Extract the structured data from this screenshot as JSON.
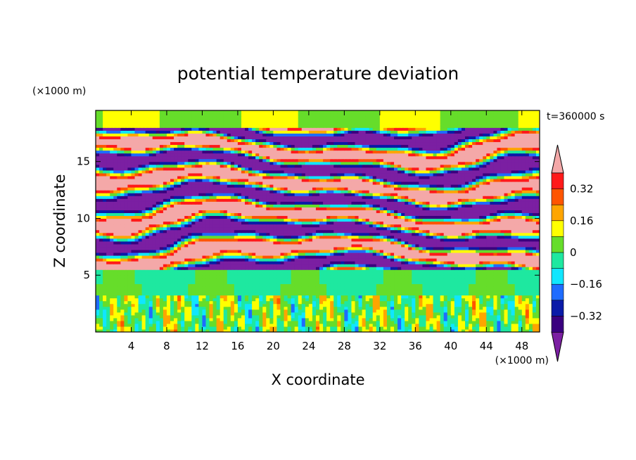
{
  "chart_data": {
    "type": "heatmap",
    "title": "potential temperature deviation",
    "xlabel": "X coordinate",
    "ylabel": "Z coordinate",
    "x_unit": "(×1000 m)",
    "y_unit": "(×1000 m)",
    "time_label": "t=360000 s",
    "xlim": [
      0,
      50
    ],
    "ylim": [
      0,
      19.5
    ],
    "x_ticks": [
      4,
      8,
      12,
      16,
      20,
      24,
      28,
      32,
      36,
      40,
      44,
      48
    ],
    "y_ticks": [
      5,
      10,
      15
    ],
    "colorbar": {
      "levels": [
        -0.4,
        -0.32,
        -0.24,
        -0.16,
        -0.08,
        0,
        0.08,
        0.16,
        0.24,
        0.32,
        0.4
      ],
      "labeled_levels": [
        0.32,
        0.16,
        0,
        -0.16,
        -0.32
      ],
      "tick_labels": [
        "0.32",
        "0.16",
        "0",
        "−0.16",
        "−0.32"
      ],
      "colors": [
        "#7b1fa2",
        "#3a007f",
        "#0a1aa8",
        "#1e6cff",
        "#10e6ff",
        "#1ee8a0",
        "#66dd2a",
        "#ffff00",
        "#ffa500",
        "#ff5500",
        "#ff1a1a",
        "#f4a8a8"
      ]
    },
    "layers": [
      {
        "z_range": [
          0,
          3.2
        ],
        "description_level": "mixed small-scale vertical plumes, mostly near 0"
      },
      {
        "z_range": [
          3.2,
          5.5
        ],
        "level": 0.0
      },
      {
        "z_range": [
          5.5,
          18
        ],
        "description_level": "alternating warm (>0.4) and cold (<-0.4) horizontal bands"
      },
      {
        "z_range": [
          18,
          19.5
        ],
        "level": 0.08
      }
    ]
  }
}
